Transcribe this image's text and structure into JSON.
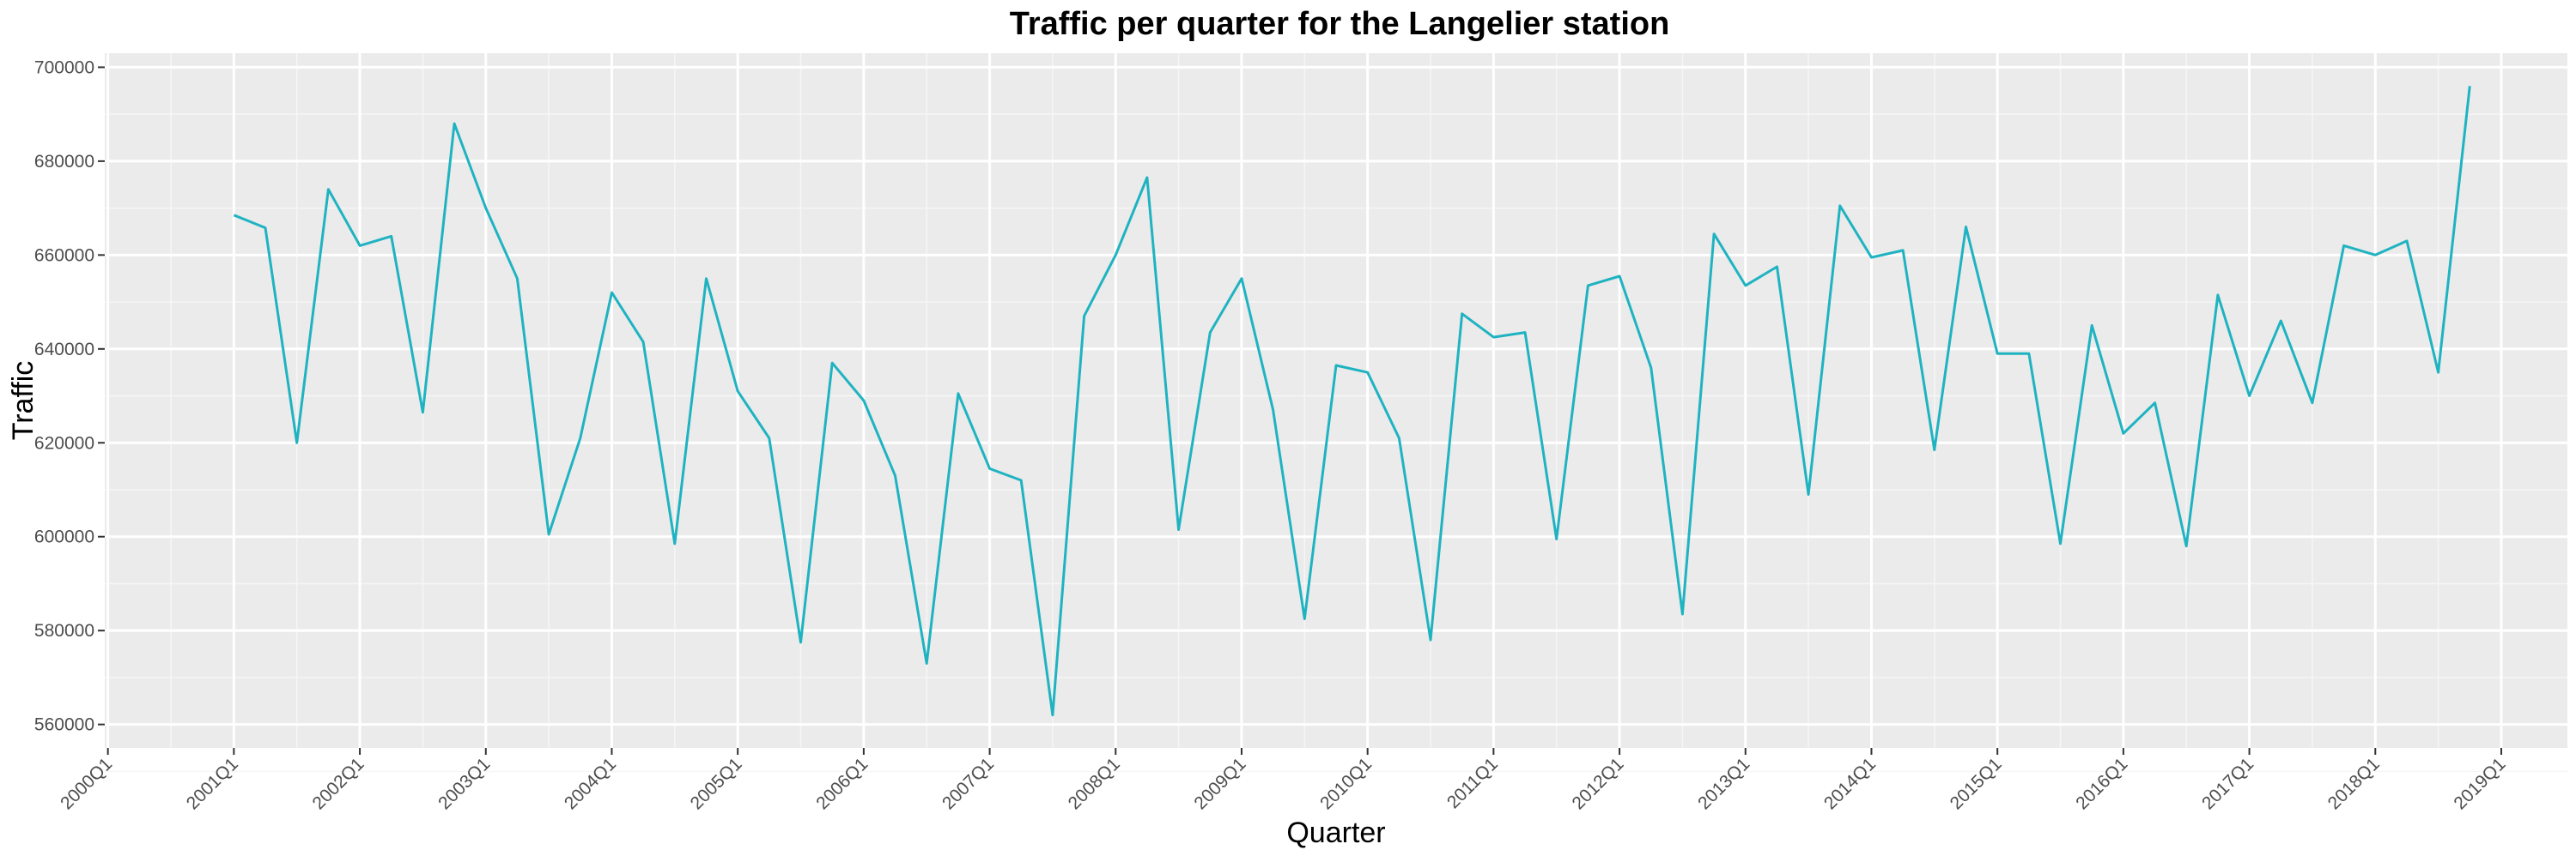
{
  "chart_data": {
    "type": "line",
    "title": "Traffic per quarter for the Langelier station",
    "xlabel": "Quarter",
    "ylabel": "Traffic",
    "x_tick_labels": [
      "2000Q1",
      "2001Q1",
      "2002Q1",
      "2003Q1",
      "2004Q1",
      "2005Q1",
      "2006Q1",
      "2007Q1",
      "2008Q1",
      "2009Q1",
      "2010Q1",
      "2011Q1",
      "2012Q1",
      "2013Q1",
      "2014Q1",
      "2015Q1",
      "2016Q1",
      "2017Q1",
      "2018Q1",
      "2019Q1"
    ],
    "y_ticks": [
      560000,
      580000,
      600000,
      620000,
      640000,
      660000,
      680000,
      700000
    ],
    "y_tick_labels": [
      "560000",
      "580000",
      "600000",
      "620000",
      "640000",
      "660000",
      "680000",
      "700000"
    ],
    "xlim": [
      "2000Q1",
      "2019Q3"
    ],
    "ylim": [
      555000,
      703000
    ],
    "grid": true,
    "background": "#ebebeb",
    "line_color": "#1fb3c1",
    "x": [
      "2001Q1",
      "2001Q2",
      "2001Q3",
      "2001Q4",
      "2002Q1",
      "2002Q2",
      "2002Q3",
      "2002Q4",
      "2003Q1",
      "2003Q2",
      "2003Q3",
      "2003Q4",
      "2004Q1",
      "2004Q2",
      "2004Q3",
      "2004Q4",
      "2005Q1",
      "2005Q2",
      "2005Q3",
      "2005Q4",
      "2006Q1",
      "2006Q2",
      "2006Q3",
      "2006Q4",
      "2007Q1",
      "2007Q2",
      "2007Q3",
      "2007Q4",
      "2008Q1",
      "2008Q2",
      "2008Q3",
      "2008Q4",
      "2009Q1",
      "2009Q2",
      "2009Q3",
      "2009Q4",
      "2010Q1",
      "2010Q2",
      "2010Q3",
      "2010Q4",
      "2011Q1",
      "2011Q2",
      "2011Q3",
      "2011Q4",
      "2012Q1",
      "2012Q2",
      "2012Q3",
      "2012Q4",
      "2013Q1",
      "2013Q2",
      "2013Q3",
      "2013Q4",
      "2014Q1",
      "2014Q2",
      "2014Q3",
      "2014Q4",
      "2015Q1",
      "2015Q2",
      "2015Q3",
      "2015Q4",
      "2016Q1",
      "2016Q2",
      "2016Q3",
      "2016Q4",
      "2017Q1",
      "2017Q2",
      "2017Q3",
      "2017Q4",
      "2018Q1",
      "2018Q2",
      "2018Q3",
      "2018Q4"
    ],
    "values": [
      668500,
      665800,
      620000,
      674000,
      662000,
      664000,
      626500,
      688000,
      670000,
      655000,
      600500,
      621000,
      652000,
      641500,
      598500,
      655000,
      631000,
      621000,
      577500,
      637000,
      629000,
      613000,
      573000,
      630500,
      614500,
      612000,
      562000,
      647000,
      660000,
      676500,
      601500,
      643500,
      655000,
      627000,
      582500,
      636500,
      635000,
      621000,
      578000,
      647500,
      642500,
      643500,
      599500,
      653500,
      655500,
      636000,
      583500,
      664500,
      653500,
      657500,
      609000,
      670500,
      659500,
      661000,
      618500,
      666000,
      639000,
      639000,
      598500,
      645000,
      622000,
      628500,
      598000,
      651500,
      630000,
      646000,
      628500,
      662000,
      660000,
      663000,
      635000,
      696000
    ]
  }
}
